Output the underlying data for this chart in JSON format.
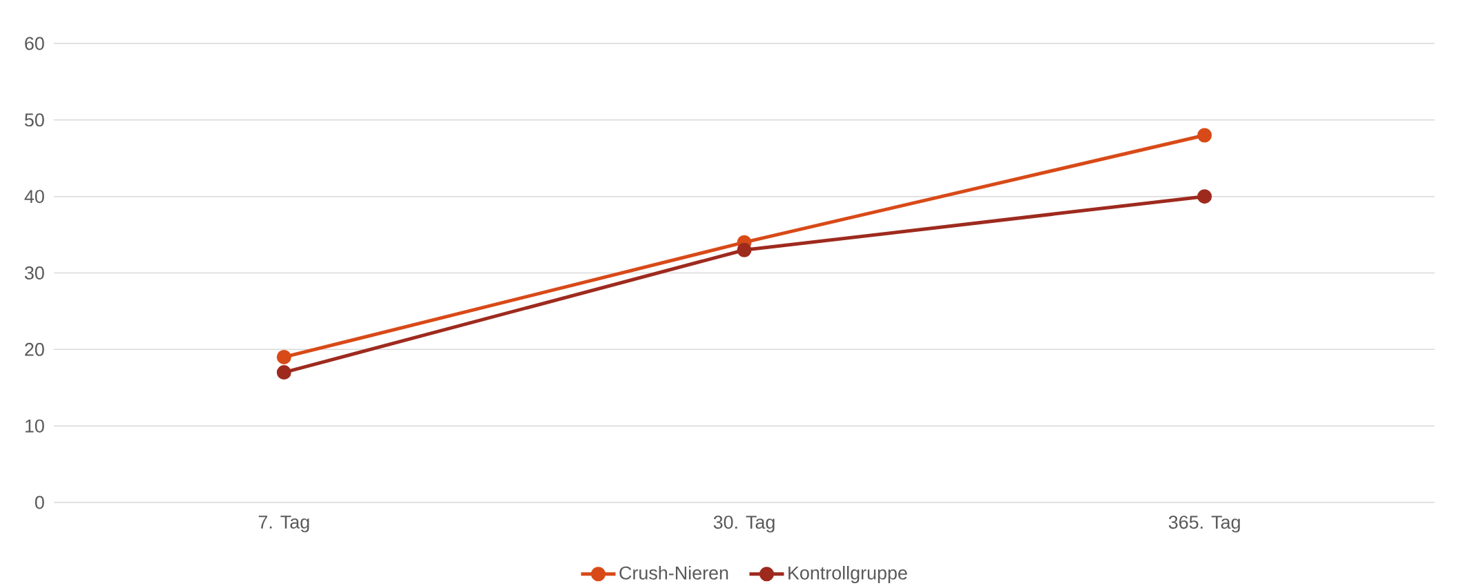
{
  "chart_data": {
    "type": "line",
    "categories": [
      "7. Tag",
      "30. Tag",
      "365. Tag"
    ],
    "series": [
      {
        "name": "Crush-Nieren",
        "color": "#d84a18",
        "values": [
          19,
          34,
          48
        ]
      },
      {
        "name": "Kontrollgruppe",
        "color": "#9e2a1e",
        "values": [
          17,
          33,
          40
        ]
      }
    ],
    "ylim": [
      0,
      60
    ],
    "yticks": [
      0,
      10,
      20,
      30,
      40,
      50,
      60
    ],
    "grid": "y",
    "legend": "bottom",
    "marker": "circle"
  }
}
